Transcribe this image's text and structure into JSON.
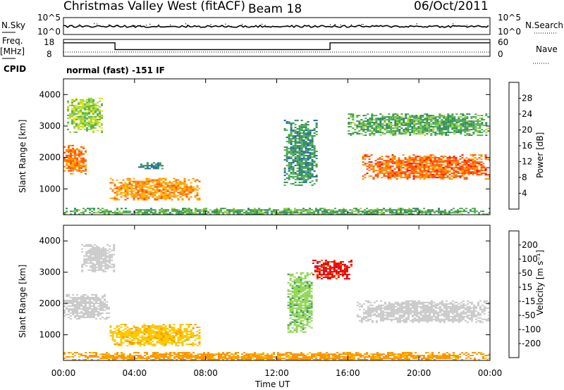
{
  "header": {
    "station": "Christmas Valley West (fitACF)",
    "beam": "Beam 18",
    "date": "06/Oct/2011"
  },
  "top_panels": {
    "nsky_label": "N.Sky",
    "nsky_ticks": [
      "10^5",
      "10^0"
    ],
    "nsearch_label": "N.Search",
    "nsearch_ticks": [
      "10^5",
      "10^0"
    ],
    "freq_label": "Freq.",
    "freq_unit": "[MHz]",
    "freq_ticks": [
      "18",
      "8"
    ],
    "nave_label": "Nave",
    "nave_ticks": [
      "60",
      "0"
    ],
    "cpid_label": "CPID",
    "cpid_value": "normal (fast) -151 IF",
    "freq_data": {
      "x": [
        0,
        2.9,
        2.9,
        15.0,
        15.0,
        24
      ],
      "y": [
        16,
        16,
        12,
        12,
        16,
        16
      ]
    }
  },
  "power_colorbar": {
    "label": "Power [dB]",
    "ticks": [
      "28",
      "24",
      "20",
      "16",
      "12",
      "8",
      "4"
    ],
    "colors": [
      "#ff0000",
      "#ff4a00",
      "#ff8c00",
      "#ffb400",
      "#e6e600",
      "#9fd23c",
      "#4caf50",
      "#2e8b57",
      "#1e5fb4",
      "#0000ff"
    ]
  },
  "velocity_colorbar": {
    "label": "Velocity [m s⁻¹]",
    "ticks": [
      "200",
      "100",
      "50",
      "15",
      "-15",
      "-50",
      "-100",
      "-200"
    ],
    "colors": [
      "#1e2fb4",
      "#2a6fd0",
      "#2e8b57",
      "#3caf3c",
      "#8cd450",
      "#c8c8c8",
      "#c8c8c8",
      "#ffc800",
      "#ff9600",
      "#ff5000",
      "#e60000"
    ]
  },
  "chart_data": [
    {
      "type": "heatmap",
      "title": "Power",
      "ylabel": "Slant Range [km]",
      "xlabel": "",
      "xlim": [
        0,
        24
      ],
      "ylim": [
        180,
        4500
      ],
      "yticks": [
        1000,
        2000,
        3000,
        4000
      ],
      "regions": [
        {
          "x": [
            0,
            1.2
          ],
          "y": [
            1500,
            2400
          ],
          "value": 26
        },
        {
          "x": [
            0.2,
            2.2
          ],
          "y": [
            2800,
            3900
          ],
          "value": 14
        },
        {
          "x": [
            2.6,
            7.6
          ],
          "y": [
            650,
            1350
          ],
          "value": 24
        },
        {
          "x": [
            4.2,
            5.6
          ],
          "y": [
            1650,
            1850
          ],
          "value": 6
        },
        {
          "x": [
            12.4,
            14.2
          ],
          "y": [
            1100,
            3200
          ],
          "value": 8
        },
        {
          "x": [
            16.8,
            24
          ],
          "y": [
            1300,
            2100
          ],
          "value": 27
        },
        {
          "x": [
            16.0,
            24
          ],
          "y": [
            2700,
            3400
          ],
          "value": 10
        },
        {
          "x": [
            0,
            24
          ],
          "y": [
            180,
            400
          ],
          "value": 10
        }
      ]
    },
    {
      "type": "heatmap",
      "title": "Velocity",
      "ylabel": "Slant Range [km]",
      "xlabel": "Time UT",
      "xlim": [
        0,
        24
      ],
      "ylim": [
        180,
        4500
      ],
      "yticks": [
        1000,
        2000,
        3000,
        4000
      ],
      "xticks": [
        "00:00",
        "04:00",
        "08:00",
        "12:00",
        "16:00",
        "20:00",
        "00:00"
      ],
      "regions": [
        {
          "x": [
            0,
            2.5
          ],
          "y": [
            1500,
            2300
          ],
          "value": 0
        },
        {
          "x": [
            1.0,
            2.8
          ],
          "y": [
            3000,
            3900
          ],
          "value": 0
        },
        {
          "x": [
            2.6,
            7.6
          ],
          "y": [
            650,
            1350
          ],
          "value": -40
        },
        {
          "x": [
            12.6,
            14.0
          ],
          "y": [
            1100,
            3000
          ],
          "value": 40
        },
        {
          "x": [
            14.0,
            16.2
          ],
          "y": [
            2800,
            3400
          ],
          "value": -210
        },
        {
          "x": [
            16.5,
            24
          ],
          "y": [
            1400,
            2100
          ],
          "value": 0
        },
        {
          "x": [
            0,
            24
          ],
          "y": [
            180,
            450
          ],
          "value": -60
        }
      ]
    }
  ]
}
